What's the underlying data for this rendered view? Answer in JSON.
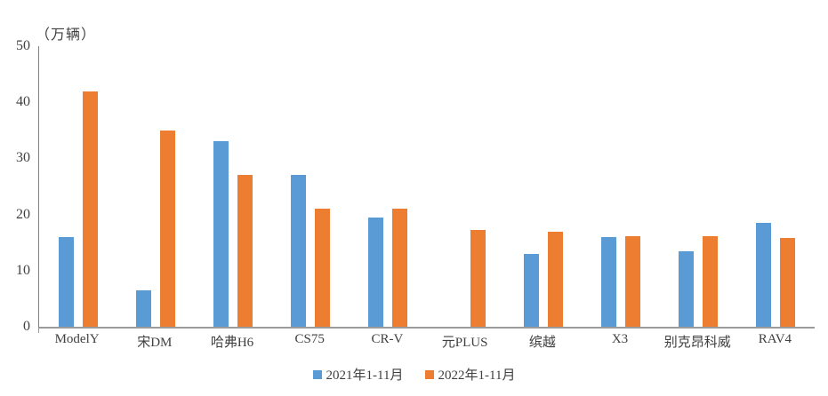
{
  "chart_data": {
    "type": "bar",
    "title": "",
    "unit_label": "（万辆）",
    "xlabel": "",
    "ylabel": "万辆",
    "ylim": [
      0,
      50
    ],
    "yticks": [
      0,
      10,
      20,
      30,
      40,
      50
    ],
    "grid": false,
    "legend_position": "bottom",
    "categories": [
      "ModelY",
      "宋DM",
      "哈弗H6",
      "CS75",
      "CR-V",
      "元PLUS",
      "缤越",
      "X3",
      "别克昂科威",
      "RAV4"
    ],
    "series": [
      {
        "name": "2021年1-11月",
        "color": "#5B9BD5",
        "values": [
          16,
          6.5,
          33,
          27,
          19.5,
          0,
          13,
          16,
          13.5,
          18.5
        ]
      },
      {
        "name": "2022年1-11月",
        "color": "#ED7D31",
        "values": [
          42,
          35,
          27,
          21,
          21,
          17.2,
          17,
          16.2,
          16.2,
          15.8
        ]
      }
    ],
    "colors": {
      "axis_line": "#9b9b9b",
      "y_axis_line": "#808080",
      "text": "#404040"
    }
  }
}
